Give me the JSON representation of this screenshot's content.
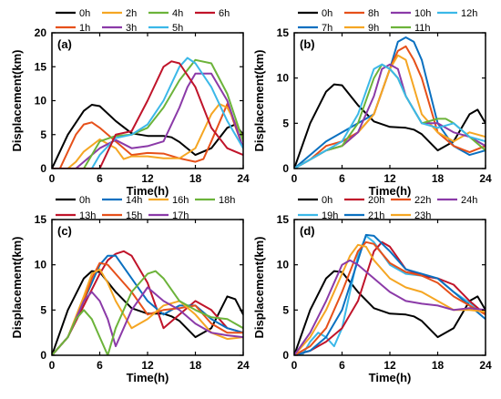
{
  "colors": {
    "0h": "#000000",
    "1h": "#e6501a",
    "2h": "#f5a623",
    "3h": "#8b3aa8",
    "4h": "#6cb33a",
    "5h": "#3bb8e8",
    "6h": "#c0142a",
    "7h": "#0a70c0",
    "8h": "#e6501a",
    "9h": "#f5a623",
    "10h": "#8b3aa8",
    "11h": "#6cb33a",
    "12h": "#3bb8e8",
    "13h": "#c0142a",
    "14h": "#0a70c0",
    "15h": "#e6501a",
    "16h": "#f5a623",
    "17h": "#8b3aa8",
    "18h": "#6cb33a",
    "19h": "#3bb8e8",
    "20h": "#c0142a",
    "21h": "#0a70c0",
    "22h": "#e6501a",
    "23h": "#f5a623",
    "24h": "#8b3aa8"
  },
  "chart_data": [
    {
      "type": "line",
      "panel": "(a)",
      "xlabel": "Time(h)",
      "ylabel": "Displacement(km)",
      "xlim": [
        0,
        24
      ],
      "ylim": [
        0,
        20
      ],
      "xticks": [
        "0",
        "6",
        "12",
        "18",
        "24"
      ],
      "yticks": [
        "0",
        "5",
        "10",
        "15",
        "20"
      ],
      "legend": [
        "0h",
        "2h",
        "4h",
        "6h",
        "1h",
        "3h",
        "5h"
      ],
      "series": [
        {
          "name": "0h",
          "x": [
            0,
            2,
            4,
            5,
            6,
            8,
            10,
            12,
            14,
            15,
            16,
            18,
            20,
            22,
            23,
            24
          ],
          "y": [
            0,
            5,
            8.5,
            9.4,
            9.2,
            7,
            5.2,
            4.8,
            4.8,
            4.6,
            3.9,
            2,
            3,
            6,
            6.5,
            5
          ]
        },
        {
          "name": "1h",
          "x": [
            0,
            1,
            2,
            3,
            4,
            5,
            6,
            8,
            10,
            12,
            14,
            16,
            18,
            19,
            20,
            22,
            24
          ],
          "y": [
            0,
            0,
            2.5,
            5,
            6.5,
            6.8,
            6,
            4,
            2,
            2.3,
            2.2,
            1.5,
            1,
            1.4,
            4,
            9.5,
            3
          ]
        },
        {
          "name": "2h",
          "x": [
            0,
            2,
            3,
            4,
            6,
            8,
            9,
            10,
            12,
            14,
            16,
            18,
            20,
            21,
            22,
            24
          ],
          "y": [
            0,
            0,
            1,
            2.5,
            4.3,
            3,
            1.4,
            1.8,
            1.8,
            1.5,
            1.5,
            3,
            8,
            9.5,
            9,
            4.5
          ]
        },
        {
          "name": "3h",
          "x": [
            0,
            3,
            4,
            6,
            8,
            10,
            12,
            14,
            16,
            17,
            18,
            20,
            22,
            24
          ],
          "y": [
            0,
            0,
            1,
            3,
            4.2,
            3,
            3.3,
            4,
            9,
            12,
            14,
            14,
            10,
            3
          ]
        },
        {
          "name": "4h",
          "x": [
            0,
            4,
            5,
            6,
            8,
            10,
            12,
            14,
            16,
            18,
            20,
            22,
            24
          ],
          "y": [
            0,
            0,
            2,
            4,
            4.8,
            5,
            6,
            9,
            13,
            16,
            15.5,
            11,
            4
          ]
        },
        {
          "name": "5h",
          "x": [
            0,
            5,
            6,
            8,
            10,
            12,
            14,
            16,
            17,
            18,
            20,
            22,
            24
          ],
          "y": [
            0,
            0,
            2,
            4.5,
            5,
            6.5,
            10,
            15,
            16.3,
            15.5,
            12,
            7,
            3
          ]
        },
        {
          "name": "6h",
          "x": [
            0,
            6,
            8,
            10,
            12,
            14,
            15,
            16,
            18,
            20,
            22,
            24
          ],
          "y": [
            0,
            0,
            5,
            5.5,
            10,
            15,
            15.8,
            15.5,
            12,
            6,
            3,
            2
          ]
        }
      ]
    },
    {
      "type": "line",
      "panel": "(b)",
      "xlabel": "Time(h)",
      "ylabel": "Displacement(km)",
      "xlim": [
        0,
        24
      ],
      "ylim": [
        0,
        15
      ],
      "xticks": [
        "0",
        "6",
        "12",
        "18",
        "24"
      ],
      "yticks": [
        "0",
        "5",
        "10",
        "15"
      ],
      "legend": [
        "0h",
        "8h",
        "10h",
        "12h",
        "7h",
        "9h",
        "11h"
      ],
      "series": [
        {
          "name": "0h",
          "x": [
            0,
            2,
            4,
            5,
            6,
            8,
            10,
            12,
            14,
            15,
            16,
            18,
            20,
            22,
            23,
            24
          ],
          "y": [
            0,
            5,
            8.5,
            9.3,
            9.2,
            7,
            5.2,
            4.6,
            4.5,
            4.3,
            3.8,
            2,
            3,
            6,
            6.5,
            5
          ]
        },
        {
          "name": "7h",
          "x": [
            0,
            2,
            4,
            6,
            8,
            10,
            12,
            13,
            14,
            15,
            16,
            18,
            20,
            22,
            24
          ],
          "y": [
            0,
            1.5,
            3,
            4,
            5,
            6,
            11,
            14,
            14.5,
            14,
            12,
            5,
            2.5,
            1.5,
            2
          ]
        },
        {
          "name": "8h",
          "x": [
            0,
            2,
            4,
            6,
            8,
            10,
            12,
            13,
            14,
            15,
            16,
            18,
            20,
            22,
            24
          ],
          "y": [
            0,
            1,
            2.5,
            3,
            4,
            6,
            11,
            13,
            13.5,
            12,
            10,
            4,
            2.5,
            1.8,
            2.5
          ]
        },
        {
          "name": "9h",
          "x": [
            0,
            2,
            4,
            6,
            8,
            10,
            12,
            13,
            14,
            16,
            18,
            20,
            22,
            24
          ],
          "y": [
            0,
            1,
            2,
            2.5,
            4,
            6,
            11,
            12.5,
            12,
            6,
            4,
            3,
            4,
            3.5
          ]
        },
        {
          "name": "10h",
          "x": [
            0,
            2,
            4,
            6,
            8,
            10,
            11,
            12,
            13,
            14,
            16,
            18,
            20,
            22,
            24
          ],
          "y": [
            0,
            1,
            2,
            2.5,
            4,
            8,
            11,
            11.5,
            11,
            8,
            5,
            5,
            4,
            3.5,
            2.5
          ]
        },
        {
          "name": "11h",
          "x": [
            0,
            2,
            4,
            6,
            8,
            10,
            11,
            12,
            13,
            14,
            16,
            18,
            19,
            20,
            22,
            24
          ],
          "y": [
            0,
            1,
            2,
            2.5,
            5,
            10,
            11.5,
            11,
            10,
            8,
            5,
            5.5,
            5.5,
            5,
            3.5,
            2
          ]
        },
        {
          "name": "12h",
          "x": [
            0,
            2,
            4,
            6,
            8,
            10,
            11,
            12,
            13,
            14,
            16,
            18,
            20,
            22,
            24
          ],
          "y": [
            0,
            1,
            2,
            3,
            6,
            11,
            11.5,
            11,
            10,
            8,
            5,
            4.5,
            5,
            3.5,
            3
          ]
        }
      ]
    },
    {
      "type": "line",
      "panel": "(c)",
      "xlabel": "Time(h)",
      "ylabel": "Displacement(km)",
      "xlim": [
        0,
        24
      ],
      "ylim": [
        0,
        15
      ],
      "xticks": [
        "0",
        "6",
        "12",
        "18",
        "24"
      ],
      "yticks": [
        "0",
        "5",
        "10",
        "15"
      ],
      "legend": [
        "0h",
        "14h",
        "16h",
        "18h",
        "13h",
        "15h",
        "17h"
      ],
      "series": [
        {
          "name": "0h",
          "x": [
            0,
            2,
            4,
            5,
            6,
            8,
            10,
            12,
            14,
            15,
            16,
            18,
            20,
            22,
            23,
            24
          ],
          "y": [
            0,
            5,
            8.5,
            9.3,
            9.2,
            7,
            5.2,
            4.6,
            4.6,
            4.3,
            3.8,
            2,
            3,
            6.5,
            6.2,
            4.5
          ]
        },
        {
          "name": "13h",
          "x": [
            0,
            2,
            4,
            6,
            7,
            8,
            9,
            10,
            12,
            14,
            16,
            18,
            20,
            22,
            24
          ],
          "y": [
            0,
            2,
            5.5,
            9,
            10.5,
            11.2,
            11.5,
            11,
            8,
            3,
            4.5,
            6,
            5,
            3,
            2.5
          ]
        },
        {
          "name": "14h",
          "x": [
            0,
            2,
            4,
            5,
            6,
            7,
            8,
            10,
            12,
            14,
            16,
            18,
            20,
            22,
            24
          ],
          "y": [
            0,
            2,
            6,
            8,
            10,
            11,
            11,
            8.5,
            6,
            4.5,
            5.5,
            5.5,
            4,
            3,
            2.5
          ]
        },
        {
          "name": "15h",
          "x": [
            0,
            2,
            4,
            5,
            6,
            7,
            8,
            10,
            12,
            14,
            16,
            18,
            20,
            22,
            24
          ],
          "y": [
            0,
            2,
            6,
            8.5,
            10.2,
            10,
            9,
            7,
            4.5,
            5,
            5.2,
            5.5,
            3.5,
            2.5,
            2.5
          ]
        },
        {
          "name": "16h",
          "x": [
            0,
            2,
            4,
            5,
            6,
            7,
            8,
            10,
            12,
            14,
            16,
            18,
            20,
            22,
            24
          ],
          "y": [
            0,
            2,
            6.5,
            9,
            9.5,
            8,
            6,
            3,
            4,
            5.5,
            6,
            4.5,
            2.5,
            1.8,
            2
          ]
        },
        {
          "name": "17h",
          "x": [
            0,
            2,
            4,
            5,
            6,
            7,
            8,
            10,
            12,
            14,
            16,
            18,
            20,
            22,
            24
          ],
          "y": [
            0,
            2,
            6,
            7,
            6,
            4,
            1,
            5,
            7.5,
            6,
            5,
            3.5,
            2.5,
            2.2,
            2
          ]
        },
        {
          "name": "18h",
          "x": [
            0,
            2,
            3,
            4,
            5,
            6,
            7,
            8,
            10,
            12,
            13,
            14,
            16,
            18,
            20,
            22,
            24
          ],
          "y": [
            0,
            2,
            4,
            5,
            4,
            2,
            0,
            3,
            7,
            9,
            9.3,
            8.5,
            6,
            5,
            4.2,
            4,
            3
          ]
        }
      ]
    },
    {
      "type": "line",
      "panel": "(d)",
      "xlabel": "Time(h)",
      "ylabel": "Displacement(km)",
      "xlim": [
        0,
        24
      ],
      "ylim": [
        0,
        15
      ],
      "xticks": [
        "0",
        "6",
        "12",
        "18",
        "24"
      ],
      "yticks": [
        "0",
        "5",
        "10",
        "15"
      ],
      "legend": [
        "0h",
        "20h",
        "22h",
        "24h",
        "19h",
        "21h",
        "23h"
      ],
      "series": [
        {
          "name": "0h",
          "x": [
            0,
            2,
            4,
            5,
            6,
            8,
            10,
            12,
            14,
            15,
            16,
            18,
            20,
            22,
            23,
            24
          ],
          "y": [
            0,
            5,
            8.5,
            9.3,
            9.2,
            7,
            5.2,
            4.6,
            4.5,
            4.3,
            3.8,
            2,
            3,
            6,
            6.5,
            5
          ]
        },
        {
          "name": "19h",
          "x": [
            0,
            1,
            2,
            3,
            4,
            5,
            6,
            8,
            9,
            10,
            12,
            14,
            16,
            18,
            20,
            22,
            24
          ],
          "y": [
            0,
            0,
            1.5,
            2.5,
            2,
            1,
            3,
            11,
            13.2,
            12.5,
            10,
            9,
            8.8,
            8.5,
            7,
            5.8,
            4.5
          ]
        },
        {
          "name": "20h",
          "x": [
            0,
            2,
            4,
            6,
            8,
            10,
            11,
            12,
            14,
            16,
            18,
            20,
            22,
            24
          ],
          "y": [
            0,
            0.5,
            1.5,
            3,
            6,
            11.5,
            12.5,
            12,
            9.5,
            8.8,
            8.5,
            7.8,
            6,
            4.5
          ]
        },
        {
          "name": "21h",
          "x": [
            0,
            2,
            4,
            6,
            8,
            9,
            10,
            12,
            14,
            16,
            18,
            20,
            22,
            24
          ],
          "y": [
            0,
            0.5,
            2,
            5,
            10.5,
            13.3,
            13.2,
            11.5,
            9.5,
            9,
            8.5,
            7,
            5.5,
            4
          ]
        },
        {
          "name": "22h",
          "x": [
            0,
            2,
            4,
            6,
            8,
            9,
            10,
            12,
            14,
            16,
            18,
            20,
            22,
            24
          ],
          "y": [
            0,
            1,
            3,
            7,
            11.5,
            12.5,
            12.3,
            10.2,
            9.2,
            8.8,
            8,
            6.5,
            5.5,
            4.5
          ]
        },
        {
          "name": "23h",
          "x": [
            0,
            2,
            4,
            6,
            7,
            8,
            9,
            10,
            12,
            14,
            16,
            18,
            20,
            22,
            24
          ],
          "y": [
            0,
            2,
            5,
            9,
            11,
            12.2,
            12,
            10.5,
            8.5,
            7.5,
            7,
            6,
            5,
            5,
            4.8
          ]
        },
        {
          "name": "24h",
          "x": [
            0,
            2,
            4,
            6,
            7,
            8,
            10,
            12,
            14,
            16,
            18,
            20,
            22,
            24
          ],
          "y": [
            0,
            2.5,
            6,
            10,
            10.5,
            10,
            8.5,
            7,
            6,
            5.7,
            5.5,
            5,
            5.2,
            5
          ]
        }
      ]
    }
  ]
}
